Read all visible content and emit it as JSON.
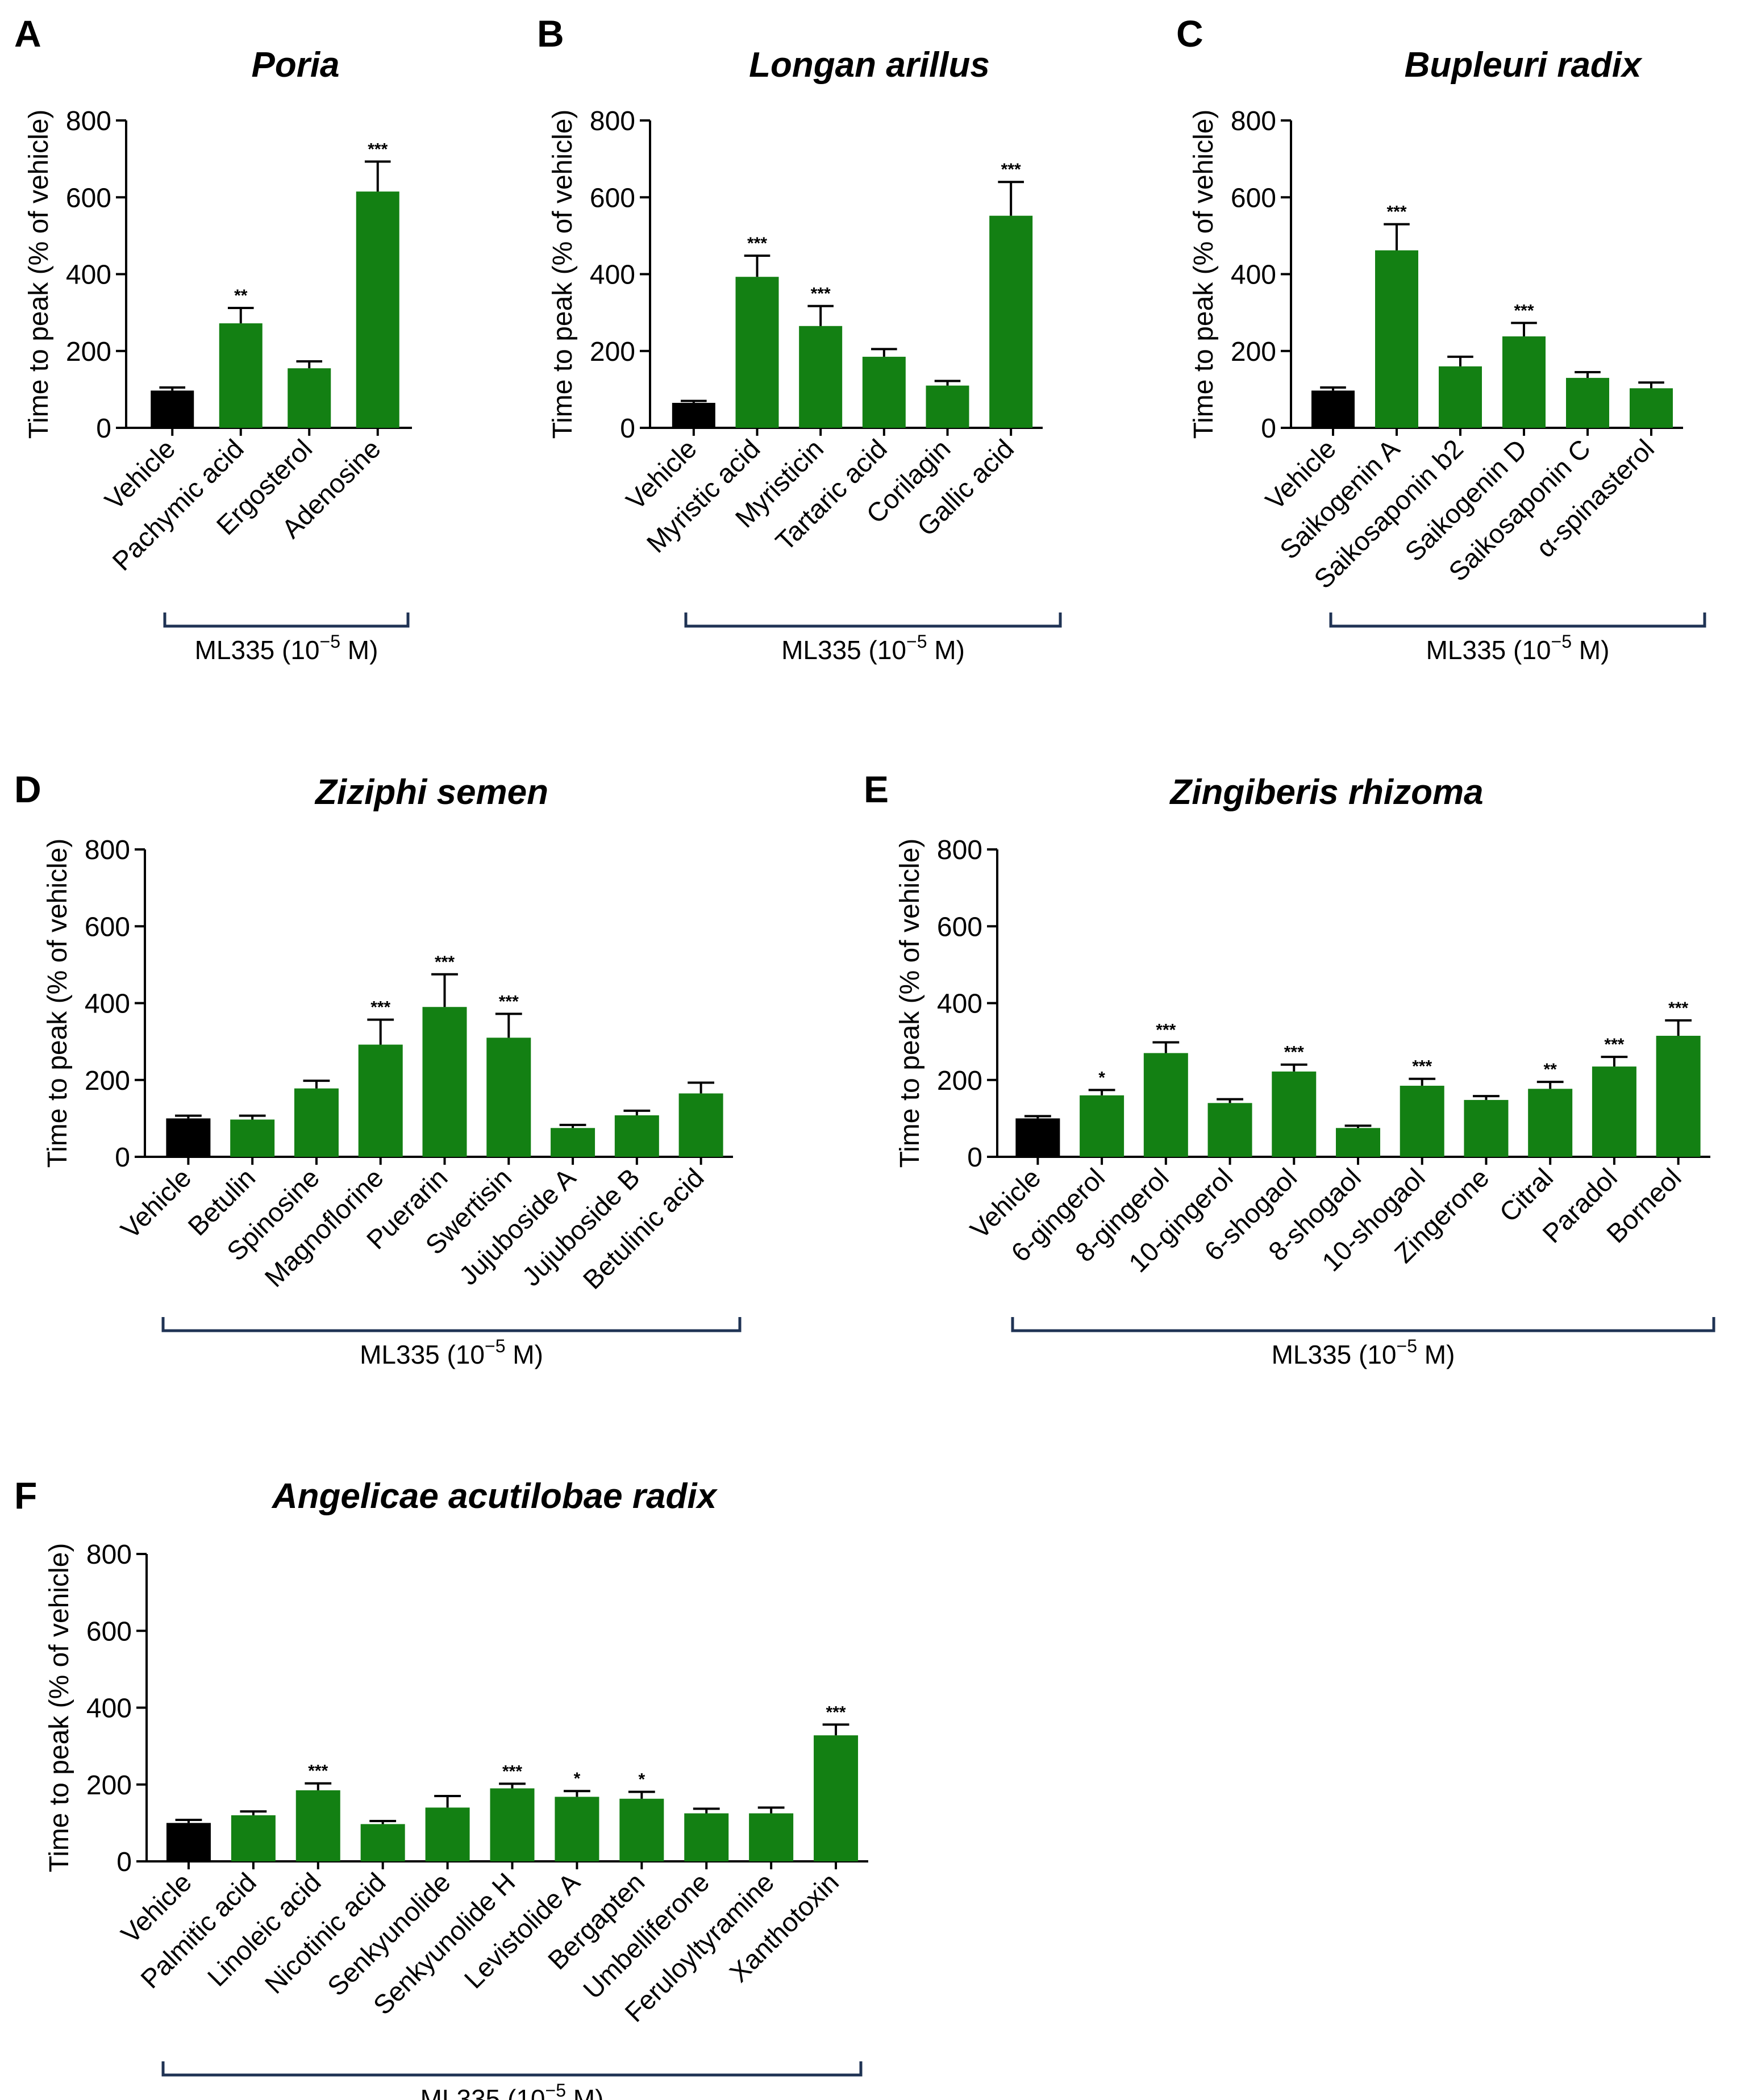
{
  "colors": {
    "vehicle": "#000000",
    "treatment": "#138013",
    "bracket": "#1f3354"
  },
  "bracket_label": {
    "prefix": "ML335 (10",
    "exponent": "−5",
    "suffix": " M)"
  },
  "chart_data": [
    {
      "panel": "A",
      "type": "bar",
      "title": "Poria",
      "ylabel": "Time to peak (% of vehicle)",
      "ylim": [
        0,
        800
      ],
      "yticks": [
        "0",
        "200",
        "400",
        "600",
        "800"
      ],
      "categories": [
        "Vehicle",
        "Pachymic acid",
        "Ergosterol",
        "Adenosine"
      ],
      "values": [
        97,
        272,
        155,
        615
      ],
      "errors": [
        8,
        40,
        18,
        78
      ],
      "significance": [
        "",
        "**",
        "",
        "***"
      ]
    },
    {
      "panel": "B",
      "type": "bar",
      "title": "Longan arillus",
      "ylabel": "Time to peak (% of vehicle)",
      "ylim": [
        0,
        800
      ],
      "yticks": [
        "0",
        "200",
        "400",
        "600",
        "800"
      ],
      "categories": [
        "Vehicle",
        "Myristic acid",
        "Myristicin",
        "Tartaric acid",
        "Corilagin",
        "Gallic acid"
      ],
      "values": [
        65,
        393,
        265,
        185,
        110,
        552
      ],
      "errors": [
        5,
        55,
        52,
        20,
        12,
        88
      ],
      "significance": [
        "",
        "***",
        "***",
        "",
        "",
        "***"
      ]
    },
    {
      "panel": "C",
      "type": "bar",
      "title": "Bupleuri radix",
      "ylabel": "Time to peak (% of vehicle)",
      "ylim": [
        0,
        800
      ],
      "yticks": [
        "0",
        "200",
        "400",
        "600",
        "800"
      ],
      "categories": [
        "Vehicle",
        "Saikogenin A",
        "Saikosaponin b2",
        "Saikogenin D",
        "Saikosaponin C",
        "α-spinasterol"
      ],
      "values": [
        97,
        462,
        160,
        238,
        130,
        103
      ],
      "errors": [
        8,
        68,
        25,
        35,
        15,
        15
      ],
      "significance": [
        "",
        "***",
        "",
        "***",
        "",
        ""
      ]
    },
    {
      "panel": "D",
      "type": "bar",
      "title": "Ziziphi semen",
      "ylabel": "Time to peak (% of vehicle)",
      "ylim": [
        0,
        800
      ],
      "yticks": [
        "0",
        "200",
        "400",
        "600",
        "800"
      ],
      "categories": [
        "Vehicle",
        "Betulin",
        "Spinosine",
        "Magnoflorine",
        "Puerarin",
        "Swertisin",
        "Jujuboside A",
        "Jujuboside B",
        "Betulinic acid"
      ],
      "values": [
        100,
        97,
        178,
        292,
        390,
        310,
        75,
        108,
        165
      ],
      "errors": [
        7,
        10,
        20,
        65,
        85,
        62,
        8,
        12,
        28
      ],
      "significance": [
        "",
        "",
        "",
        "***",
        "***",
        "***",
        "",
        "",
        ""
      ]
    },
    {
      "panel": "E",
      "type": "bar",
      "title": "Zingiberis rhizoma",
      "ylabel": "Time to peak (% of vehicle)",
      "ylim": [
        0,
        800
      ],
      "yticks": [
        "0",
        "200",
        "400",
        "600",
        "800"
      ],
      "categories": [
        "Vehicle",
        "6-gingerol",
        "8-gingerol",
        "10-gingerol",
        "6-shogaol",
        "8-shogaol",
        "10-shogaol",
        "Zingerone",
        "Citral",
        "Paradol",
        "Borneol"
      ],
      "values": [
        100,
        160,
        270,
        140,
        222,
        75,
        185,
        148,
        177,
        235,
        315
      ],
      "errors": [
        6,
        14,
        28,
        10,
        18,
        6,
        18,
        10,
        18,
        25,
        40
      ],
      "significance": [
        "",
        "*",
        "***",
        "",
        "***",
        "",
        "***",
        "",
        "**",
        "***",
        "***"
      ]
    },
    {
      "panel": "F",
      "type": "bar",
      "title": "Angelicae acutilobae radix",
      "ylabel": "Time to peak (% of vehicle)",
      "ylim": [
        0,
        800
      ],
      "yticks": [
        "0",
        "200",
        "400",
        "600",
        "800"
      ],
      "categories": [
        "Vehicle",
        "Palmitic acid",
        "Linoleic acid",
        "Nicotinic acid",
        "Senkyunolide",
        "Senkyunolide H",
        "Levistolide A",
        "Bergapten",
        "Umbelliferone",
        "Feruloyltyramine",
        "Xanthotoxin"
      ],
      "values": [
        100,
        120,
        185,
        97,
        140,
        190,
        168,
        163,
        125,
        125,
        328
      ],
      "errors": [
        8,
        10,
        18,
        8,
        30,
        12,
        15,
        18,
        12,
        15,
        28
      ],
      "significance": [
        "",
        "",
        "***",
        "",
        "",
        "***",
        "*",
        "*",
        "",
        "",
        "***"
      ]
    }
  ]
}
